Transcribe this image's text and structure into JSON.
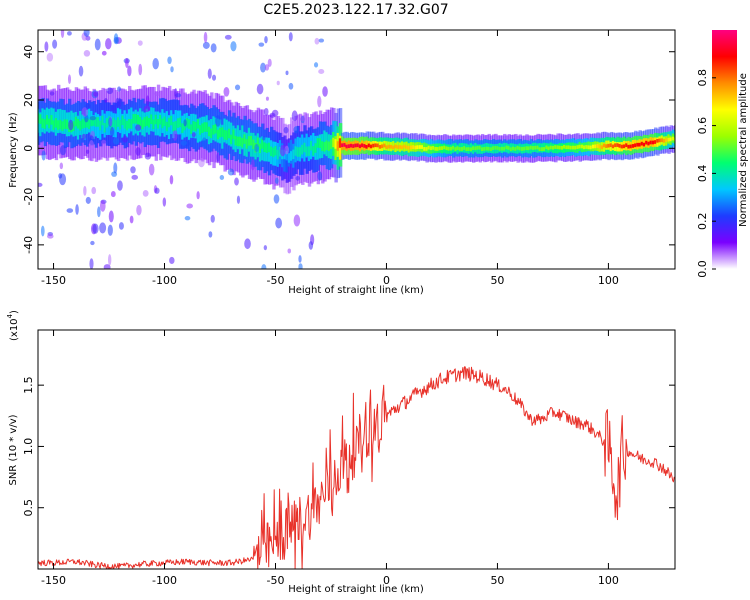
{
  "title": "C2E5.2023.122.17.32.G07",
  "chart_data": [
    {
      "type": "heatmap",
      "xlabel": "Height of straight line (km)",
      "ylabel": "Frequency (Hz)",
      "xlim": [
        -157,
        130
      ],
      "ylim": [
        -50,
        49
      ],
      "xticks": [
        -150,
        -100,
        -50,
        0,
        50,
        100
      ],
      "yticks": [
        -40,
        -20,
        0,
        20,
        40
      ],
      "ridge": {
        "x": [
          -157,
          -140,
          -125,
          -110,
          -95,
          -80,
          -70,
          -60,
          -50,
          -45,
          -40,
          -35,
          -30,
          -25,
          -20,
          -10,
          0,
          10,
          20,
          30,
          50,
          70,
          90,
          100,
          110,
          120,
          130
        ],
        "freq": [
          11,
          10,
          10,
          11,
          10,
          8,
          5,
          2,
          -2,
          -4,
          -1,
          0,
          1,
          1.5,
          1,
          1,
          0.8,
          0.5,
          0,
          0,
          0,
          0,
          0.5,
          1,
          1,
          2.5,
          4
        ],
        "amp": [
          0.45,
          0.45,
          0.4,
          0.45,
          0.42,
          0.45,
          0.45,
          0.47,
          0.42,
          0.3,
          0.4,
          0.4,
          0.45,
          0.48,
          0.95,
          0.92,
          0.75,
          0.72,
          0.6,
          0.52,
          0.5,
          0.52,
          0.6,
          0.8,
          0.88,
          0.9,
          0.6
        ]
      },
      "colorbar": {
        "label": "Normalized spectral amplitude",
        "range": [
          0,
          1
        ],
        "ticks": [
          "0.0",
          "0.2",
          "0.4",
          "0.6",
          "0.8"
        ],
        "colors": [
          "#ffffff",
          "#7a00ff",
          "#1e3cff",
          "#00c8ff",
          "#00ff70",
          "#9cff00",
          "#ffff00",
          "#ff8c00",
          "#ff0000",
          "#ff0080"
        ]
      }
    },
    {
      "type": "line",
      "xlabel": "Height of straight line (km)",
      "ylabel": "SNR (10 * v/v)",
      "scale_label": "(x10",
      "scale_exp": "4",
      "scale_close": ")",
      "xlim": [
        -157,
        130
      ],
      "ylim": [
        0,
        1.95
      ],
      "xticks": [
        -150,
        -100,
        -50,
        0,
        50,
        100
      ],
      "yticks": [
        "0.5",
        "1.0",
        "1.5"
      ],
      "color": "#e8322a",
      "series": [
        {
          "x": [
            -157,
            -150,
            -140,
            -130,
            -120,
            -110,
            -100,
            -90,
            -80,
            -70,
            -60,
            -55,
            -50,
            -45,
            -40,
            -35,
            -30,
            -25,
            -20,
            -15,
            -12,
            -10,
            -5,
            0,
            5,
            10,
            15,
            20,
            25,
            30,
            35,
            40,
            45,
            50,
            55,
            60,
            65,
            70,
            75,
            80,
            85,
            90,
            95,
            100,
            102,
            104,
            106,
            108,
            110,
            115,
            120,
            125,
            130
          ],
          "y": [
            0.05,
            0.05,
            0.06,
            0.03,
            0.02,
            0.04,
            0.05,
            0.06,
            0.05,
            0.05,
            0.08,
            0.15,
            0.22,
            0.3,
            0.38,
            0.45,
            0.55,
            0.72,
            0.85,
            0.95,
            1.05,
            1.1,
            1.18,
            1.25,
            1.32,
            1.38,
            1.45,
            1.5,
            1.55,
            1.58,
            1.6,
            1.58,
            1.55,
            1.5,
            1.45,
            1.35,
            1.22,
            1.22,
            1.28,
            1.25,
            1.2,
            1.18,
            1.1,
            1.0,
            0.8,
            0.6,
            0.95,
            0.98,
            0.95,
            0.9,
            0.88,
            0.82,
            0.72
          ]
        }
      ]
    }
  ]
}
